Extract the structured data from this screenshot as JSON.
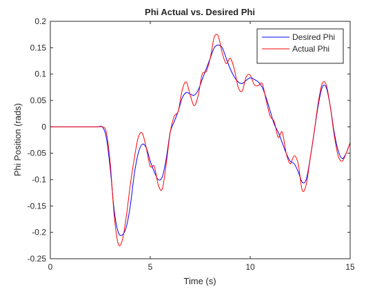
{
  "chart_data": {
    "type": "line",
    "title": "Phi Actual vs. Desired Phi",
    "x_label": "Time (s)",
    "y_label": "Phi Position (rads)",
    "x": [
      0,
      0.2,
      0.4,
      0.6,
      0.8,
      1,
      1.2,
      1.4,
      1.6,
      1.8,
      2,
      2.2,
      2.4,
      2.6,
      2.8,
      3,
      3.2,
      3.4,
      3.6,
      3.8,
      4,
      4.2,
      4.4,
      4.6,
      4.8,
      5,
      5.2,
      5.4,
      5.6,
      5.8,
      6,
      6.2,
      6.4,
      6.6,
      6.8,
      7,
      7.2,
      7.4,
      7.6,
      7.8,
      8,
      8.2,
      8.4,
      8.6,
      8.8,
      9,
      9.2,
      9.4,
      9.6,
      9.8,
      10,
      10.2,
      10.4,
      10.6,
      10.8,
      11,
      11.2,
      11.4,
      11.6,
      11.8,
      12,
      12.2,
      12.4,
      12.6,
      12.8,
      13,
      13.2,
      13.4,
      13.6,
      13.8,
      14,
      14.2,
      14.4,
      14.6,
      14.8,
      15
    ],
    "series": [
      {
        "name": "Desired Phi",
        "color": "#0000ff",
        "values": [
          0,
          0,
          0,
          0,
          0,
          0,
          0,
          0,
          0,
          0,
          0,
          0,
          0,
          0,
          -0.02,
          -0.08,
          -0.16,
          -0.2,
          -0.205,
          -0.19,
          -0.15,
          -0.09,
          -0.05,
          -0.033,
          -0.04,
          -0.065,
          -0.085,
          -0.1,
          -0.095,
          -0.06,
          -0.01,
          0.01,
          0.03,
          0.055,
          0.065,
          0.062,
          0.06,
          0.07,
          0.09,
          0.11,
          0.13,
          0.15,
          0.155,
          0.15,
          0.13,
          0.11,
          0.095,
          0.085,
          0.082,
          0.088,
          0.093,
          0.09,
          0.085,
          0.075,
          0.055,
          0.03,
          0.005,
          -0.01,
          -0.03,
          -0.05,
          -0.065,
          -0.07,
          -0.085,
          -0.105,
          -0.1,
          -0.06,
          -0.01,
          0.04,
          0.075,
          0.075,
          0.04,
          -0.01,
          -0.045,
          -0.06,
          -0.05,
          -0.03
        ]
      },
      {
        "name": "Actual Phi",
        "color": "#ff0000",
        "values": [
          0,
          0,
          0,
          0,
          0,
          0,
          0,
          0,
          0,
          0,
          0,
          0,
          0,
          0,
          -0.01,
          -0.07,
          -0.17,
          -0.222,
          -0.215,
          -0.17,
          -0.11,
          -0.06,
          -0.02,
          -0.012,
          -0.04,
          -0.075,
          -0.075,
          -0.11,
          -0.118,
          -0.07,
          -0.01,
          0.02,
          0.03,
          0.07,
          0.085,
          0.06,
          0.04,
          0.06,
          0.1,
          0.105,
          0.13,
          0.17,
          0.172,
          0.14,
          0.12,
          0.13,
          0.11,
          0.075,
          0.068,
          0.095,
          0.098,
          0.08,
          0.078,
          0.082,
          0.05,
          0.02,
          0.01,
          -0.02,
          -0.01,
          -0.05,
          -0.07,
          -0.055,
          -0.07,
          -0.12,
          -0.11,
          -0.06,
          -0.01,
          0.045,
          0.082,
          0.08,
          0.04,
          -0.015,
          -0.055,
          -0.065,
          -0.05,
          -0.03
        ]
      }
    ],
    "xlim": [
      0,
      15
    ],
    "xticks": [
      0,
      5,
      10,
      15
    ],
    "ylim": [
      -0.25,
      0.2
    ],
    "yticks": [
      -0.25,
      -0.2,
      -0.15,
      -0.1,
      -0.05,
      0,
      0.05,
      0.1,
      0.15,
      0.2
    ],
    "grid": false,
    "legend": "northeast"
  }
}
